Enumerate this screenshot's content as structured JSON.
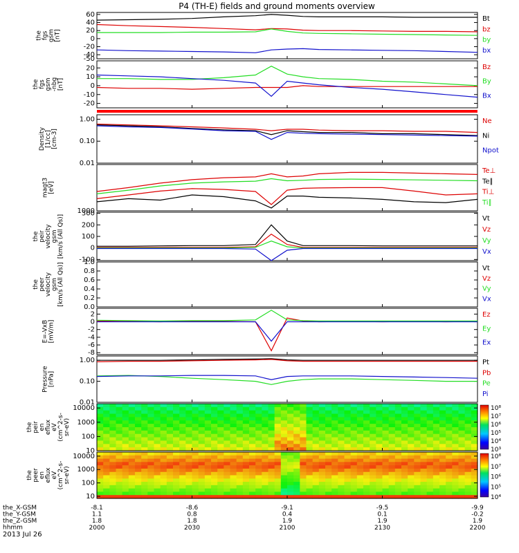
{
  "title": "P4 (TH-E) fields and ground moments overview",
  "date": "2013 Jul 26",
  "time_ticks": [
    "2000",
    "2030",
    "2100",
    "2130",
    "2200"
  ],
  "ephemeris": [
    {
      "label": "the_X-GSM",
      "values": [
        "-8.1",
        "-8.6",
        "-9.1",
        "-9.5",
        "-9.9"
      ]
    },
    {
      "label": "the_Y-GSM",
      "values": [
        "1.1",
        "0.8",
        "0.4",
        "0.1",
        "-0.2"
      ]
    },
    {
      "label": "the_Z-GSM",
      "values": [
        "1.8",
        "1.8",
        "1.9",
        "1.9",
        "1.9"
      ]
    },
    {
      "label": "hhmm",
      "values": []
    }
  ],
  "colors": {
    "black": "#000000",
    "red": "#dd0000",
    "green": "#22dd22",
    "blue": "#1010cc"
  },
  "panels": [
    {
      "id": "fgs-gsm",
      "ylabel": [
        "the",
        "fgs",
        "gsm",
        "[nT]"
      ],
      "scale": "linear",
      "ylim": [
        -50,
        65
      ],
      "ticks": [
        "60",
        "40",
        "20",
        "0",
        "-20",
        "-40",
        "-50"
      ],
      "legend": [
        {
          "text": "Bt",
          "color": "black"
        },
        {
          "text": "bz",
          "color": "red"
        },
        {
          "text": "by",
          "color": "green"
        },
        {
          "text": "bx",
          "color": "blue"
        }
      ]
    },
    {
      "id": "fgs-gsm-nobg",
      "ylabel": [
        "the",
        "fgs",
        "gsm",
        "-nbg",
        "[nT]"
      ],
      "scale": "linear",
      "ylim": [
        -25,
        28
      ],
      "ticks": [
        "20",
        "10",
        "0",
        "-10",
        "-20"
      ],
      "legend": [
        {
          "text": "Bz",
          "color": "red"
        },
        {
          "text": "By",
          "color": "green"
        },
        {
          "text": "Bx",
          "color": "blue"
        }
      ]
    },
    {
      "id": "density",
      "ylabel": [
        "Density",
        "[1/cc]",
        "[cm-3]"
      ],
      "scale": "log",
      "ylim": [
        0.01,
        1.6
      ],
      "ticks": [
        "1.00",
        "0.10",
        "0.01"
      ],
      "legend": [
        {
          "text": "Ne",
          "color": "red"
        },
        {
          "text": "Ni",
          "color": "black"
        },
        {
          "text": "Npot",
          "color": "blue"
        }
      ]
    },
    {
      "id": "temperature",
      "ylabel": [
        "magt3",
        "[eV]"
      ],
      "scale": "log",
      "ylim": [
        1000,
        20000
      ],
      "ticks": [
        "1000"
      ],
      "legend": [
        {
          "text": "Te⊥",
          "color": "red"
        },
        {
          "text": "Te∥",
          "color": "black"
        },
        {
          "text": "Ti⊥",
          "color": "red"
        },
        {
          "text": "Ti∥",
          "color": "green"
        }
      ]
    },
    {
      "id": "peir-velocity",
      "ylabel": [
        "the",
        "peir",
        "velocity",
        "gsm",
        "[km/s (All Qs)]"
      ],
      "scale": "linear",
      "ylim": [
        -110,
        310
      ],
      "ticks": [
        "300",
        "200",
        "100",
        "0",
        "-100"
      ],
      "legend": [
        {
          "text": "Vt",
          "color": "black"
        },
        {
          "text": "Vz",
          "color": "red"
        },
        {
          "text": "Vy",
          "color": "green"
        },
        {
          "text": "Vx",
          "color": "blue"
        }
      ]
    },
    {
      "id": "peer-velocity",
      "ylabel": [
        "the",
        "peer",
        "velocity",
        "gsm",
        "[km/s (All Qs)]"
      ],
      "scale": "linear",
      "ylim": [
        0,
        1
      ],
      "ticks": [
        "1.0",
        "0.8",
        "0.6",
        "0.4",
        "0.2",
        "0.0"
      ],
      "legend": [
        {
          "text": "Vt",
          "color": "black"
        },
        {
          "text": "Vz",
          "color": "red"
        },
        {
          "text": "Vy",
          "color": "green"
        },
        {
          "text": "Vx",
          "color": "blue"
        }
      ]
    },
    {
      "id": "efield",
      "ylabel": [
        "E=-VxB",
        "[mV/m]"
      ],
      "scale": "linear",
      "ylim": [
        -8.5,
        3.5
      ],
      "ticks": [
        "2",
        "0",
        "-2",
        "-4",
        "-6",
        "-8"
      ],
      "legend": [
        {
          "text": "Ez",
          "color": "red"
        },
        {
          "text": "Ey",
          "color": "green"
        },
        {
          "text": "Ex",
          "color": "blue"
        }
      ]
    },
    {
      "id": "pressure",
      "ylabel": [
        "Pressure",
        "[nPa]"
      ],
      "scale": "log",
      "ylim": [
        0.01,
        1.6
      ],
      "ticks": [
        "1.00",
        "0.10",
        "0.01"
      ],
      "legend": [
        {
          "text": "Pt",
          "color": "black"
        },
        {
          "text": "Pb",
          "color": "red"
        },
        {
          "text": "Pe",
          "color": "green"
        },
        {
          "text": "Pi",
          "color": "blue"
        }
      ]
    },
    {
      "id": "peir-spectrogram",
      "ylabel": [
        "the",
        "peir",
        "en",
        "eflux",
        "eV",
        "(cm^2-s-",
        "sr-eV)"
      ],
      "scale": "log",
      "ylim": [
        10,
        20000
      ],
      "ticks": [
        "10000",
        "1000",
        "100",
        "10"
      ],
      "colorbar": [
        "10⁸",
        "10⁷",
        "10⁶",
        "10⁵",
        "10⁴",
        "10³"
      ]
    },
    {
      "id": "peer-spectrogram",
      "ylabel": [
        "the",
        "peer",
        "en",
        "eflux",
        "eV",
        "(cm^2-s-",
        "sr-eV)"
      ],
      "scale": "log",
      "ylim": [
        7,
        20000
      ],
      "ticks": [
        "10000",
        "1000",
        "100",
        "10"
      ],
      "colorbar": [
        "10⁸",
        "10⁷",
        "10⁶",
        "10⁵",
        "10⁴"
      ]
    }
  ],
  "chart_data": {
    "type": "line",
    "title": "P4 (TH-E) fields and ground moments overview",
    "x_unit": "UT (hhmm)",
    "xlim": [
      "2000",
      "2200"
    ],
    "times_min": [
      0,
      10,
      20,
      30,
      40,
      50,
      55,
      60,
      65,
      70,
      80,
      90,
      100,
      110,
      120
    ],
    "series": [
      {
        "panel": "fgs-gsm",
        "name": "Bt",
        "values": [
          46,
          47,
          48,
          50,
          54,
          57,
          60,
          58,
          55,
          54,
          54,
          54,
          53,
          53,
          53
        ]
      },
      {
        "panel": "fgs-gsm",
        "name": "bz",
        "values": [
          35,
          32,
          30,
          28,
          25,
          22,
          25,
          24,
          21,
          20,
          20,
          19,
          18,
          18,
          17
        ]
      },
      {
        "panel": "fgs-gsm",
        "name": "by",
        "values": [
          15,
          15,
          15,
          16,
          16,
          17,
          24,
          18,
          14,
          13,
          12,
          11,
          10,
          9,
          8
        ]
      },
      {
        "panel": "fgs-gsm",
        "name": "bx",
        "values": [
          -28,
          -30,
          -31,
          -32,
          -33,
          -35,
          -28,
          -26,
          -25,
          -27,
          -28,
          -29,
          -30,
          -32,
          -34
        ]
      },
      {
        "panel": "fgs-gsm-nobg",
        "name": "Bz",
        "values": [
          -2,
          -3,
          -3,
          -4,
          -3,
          -2,
          -2,
          -2,
          0,
          -1,
          -1,
          -1,
          -1,
          -1,
          -1
        ]
      },
      {
        "panel": "fgs-gsm-nobg",
        "name": "By",
        "values": [
          8,
          8,
          7,
          7,
          9,
          12,
          22,
          13,
          10,
          8,
          7,
          5,
          4,
          2,
          0
        ]
      },
      {
        "panel": "fgs-gsm-nobg",
        "name": "Bx",
        "values": [
          12,
          11,
          10,
          8,
          6,
          3,
          -12,
          5,
          3,
          1,
          -2,
          -4,
          -7,
          -10,
          -13
        ]
      },
      {
        "panel": "density",
        "name": "Ne",
        "values": [
          0.6,
          0.55,
          0.5,
          0.45,
          0.4,
          0.35,
          0.3,
          0.35,
          0.35,
          0.32,
          0.3,
          0.3,
          0.28,
          0.28,
          0.25
        ]
      },
      {
        "panel": "density",
        "name": "Ni",
        "values": [
          0.55,
          0.5,
          0.45,
          0.38,
          0.33,
          0.3,
          0.2,
          0.3,
          0.27,
          0.25,
          0.25,
          0.22,
          0.22,
          0.2,
          0.18
        ]
      },
      {
        "panel": "density",
        "name": "Npot",
        "values": [
          0.5,
          0.45,
          0.42,
          0.36,
          0.3,
          0.28,
          0.12,
          0.25,
          0.23,
          0.22,
          0.21,
          0.2,
          0.19,
          0.18,
          0.17
        ]
      },
      {
        "panel": "temperature",
        "name": "Te⊥",
        "values": [
          2200,
          2800,
          3600,
          4200,
          4000,
          3500,
          1500,
          3800,
          4300,
          4400,
          4500,
          4500,
          3600,
          2800,
          3000
        ]
      },
      {
        "panel": "temperature",
        "name": "Te∥",
        "values": [
          1800,
          2200,
          2000,
          2800,
          2500,
          1900,
          1200,
          2600,
          2600,
          2400,
          2300,
          2100,
          1800,
          1700,
          2100
        ]
      },
      {
        "panel": "temperature",
        "name": "Ti⊥",
        "values": [
          3500,
          4500,
          6000,
          7500,
          8500,
          9000,
          11000,
          9000,
          9500,
          11000,
          12000,
          12000,
          11500,
          11000,
          10500
        ]
      },
      {
        "panel": "temperature",
        "name": "Ti∥",
        "values": [
          3000,
          3800,
          5000,
          6000,
          6500,
          6800,
          8000,
          7000,
          7200,
          7600,
          7800,
          7600,
          7400,
          7200,
          7000
        ]
      },
      {
        "panel": "peir-velocity",
        "name": "Vt",
        "values": [
          15,
          15,
          18,
          20,
          20,
          30,
          200,
          60,
          20,
          20,
          20,
          18,
          18,
          18,
          18
        ]
      },
      {
        "panel": "peir-velocity",
        "name": "Vz",
        "values": [
          5,
          5,
          5,
          5,
          5,
          10,
          120,
          30,
          5,
          5,
          5,
          5,
          5,
          5,
          5
        ]
      },
      {
        "panel": "peir-velocity",
        "name": "Vy",
        "values": [
          0,
          0,
          0,
          0,
          0,
          5,
          60,
          10,
          0,
          0,
          0,
          0,
          0,
          0,
          0
        ]
      },
      {
        "panel": "peir-velocity",
        "name": "Vx",
        "values": [
          -5,
          -5,
          -5,
          -5,
          -5,
          -10,
          -120,
          -20,
          -5,
          -5,
          -5,
          -5,
          -5,
          -5,
          -5
        ]
      },
      {
        "panel": "efield",
        "name": "Ez",
        "values": [
          0.2,
          0.1,
          0,
          0.2,
          0.1,
          0,
          -7.5,
          1,
          0.2,
          0,
          0.1,
          0,
          0.1,
          0,
          0.1
        ]
      },
      {
        "panel": "efield",
        "name": "Ey",
        "values": [
          0.4,
          0.3,
          0.2,
          0.3,
          0.3,
          0.5,
          3,
          0.5,
          0.3,
          0.2,
          0.2,
          0.2,
          0.2,
          0.2,
          0.2
        ]
      },
      {
        "panel": "efield",
        "name": "Ex",
        "values": [
          0,
          0,
          0,
          0,
          0,
          0,
          -5,
          0,
          0,
          0,
          0,
          0,
          0,
          0,
          0
        ]
      },
      {
        "panel": "pressure",
        "name": "Pt",
        "values": [
          1,
          1,
          1,
          1.05,
          1.1,
          1.15,
          1.2,
          1.05,
          1.0,
          1.0,
          1.0,
          1.0,
          1.0,
          1.0,
          1.0
        ]
      },
      {
        "panel": "pressure",
        "name": "Pb",
        "values": [
          0.85,
          0.9,
          0.9,
          0.95,
          1.0,
          1.05,
          1.1,
          0.95,
          0.9,
          0.9,
          0.9,
          0.9,
          0.9,
          0.9,
          0.9
        ]
      },
      {
        "panel": "pressure",
        "name": "Pe",
        "values": [
          0.18,
          0.19,
          0.17,
          0.14,
          0.12,
          0.1,
          0.07,
          0.1,
          0.12,
          0.13,
          0.13,
          0.12,
          0.11,
          0.1,
          0.1
        ]
      },
      {
        "panel": "pressure",
        "name": "Pi",
        "values": [
          0.17,
          0.18,
          0.18,
          0.19,
          0.19,
          0.18,
          0.12,
          0.17,
          0.18,
          0.18,
          0.18,
          0.17,
          0.16,
          0.15,
          0.14
        ]
      }
    ]
  }
}
